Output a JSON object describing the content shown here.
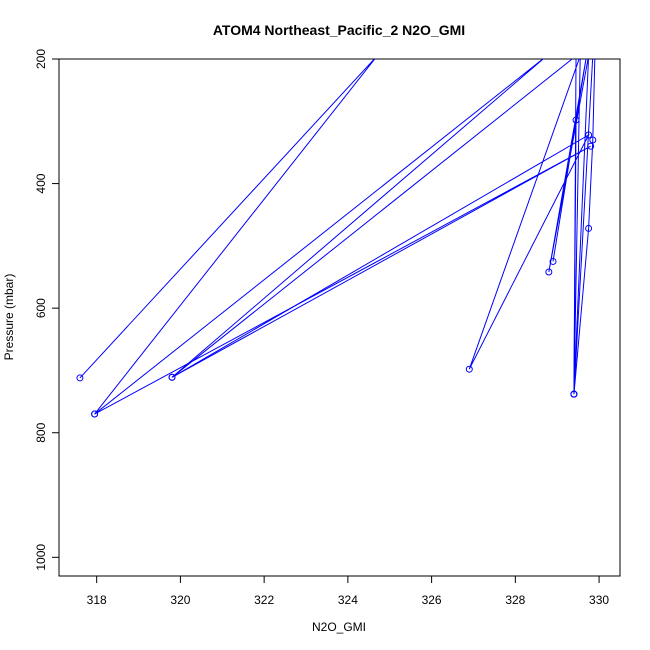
{
  "chart_data": {
    "type": "line",
    "title": "ATOM4 Northeast_Pacific_2 N2O_GMI",
    "xlabel": "N2O_GMI",
    "ylabel": "Pressure (mbar)",
    "xlim": [
      317.1,
      330.5
    ],
    "ylim": [
      1030,
      200
    ],
    "y_reversed": true,
    "x_ticks": [
      318,
      320,
      322,
      324,
      326,
      328,
      330
    ],
    "y_ticks": [
      200,
      400,
      600,
      800,
      1000
    ],
    "grid": false,
    "legend": "none",
    "color": "#0000ff",
    "marker": "open-circle",
    "series": [
      {
        "x": [
          317.6,
          324.7,
          317.95,
          328.75,
          319.8,
          329.75,
          326.9,
          329.55,
          329.4,
          329.75,
          328.8,
          329.7,
          328.9,
          329.45,
          329.4,
          329.75,
          329.85,
          329.9
        ],
        "y": [
          712,
          195,
          770,
          195,
          711,
          322,
          698,
          195,
          738,
          195,
          542,
          195,
          525,
          298,
          738,
          472,
          330,
          195
        ]
      },
      {
        "x": [
          317.95,
          329.8,
          319.8,
          329.45,
          329.4,
          329.85
        ],
        "y": [
          770,
          340,
          711,
          195,
          738,
          195
        ]
      }
    ]
  }
}
